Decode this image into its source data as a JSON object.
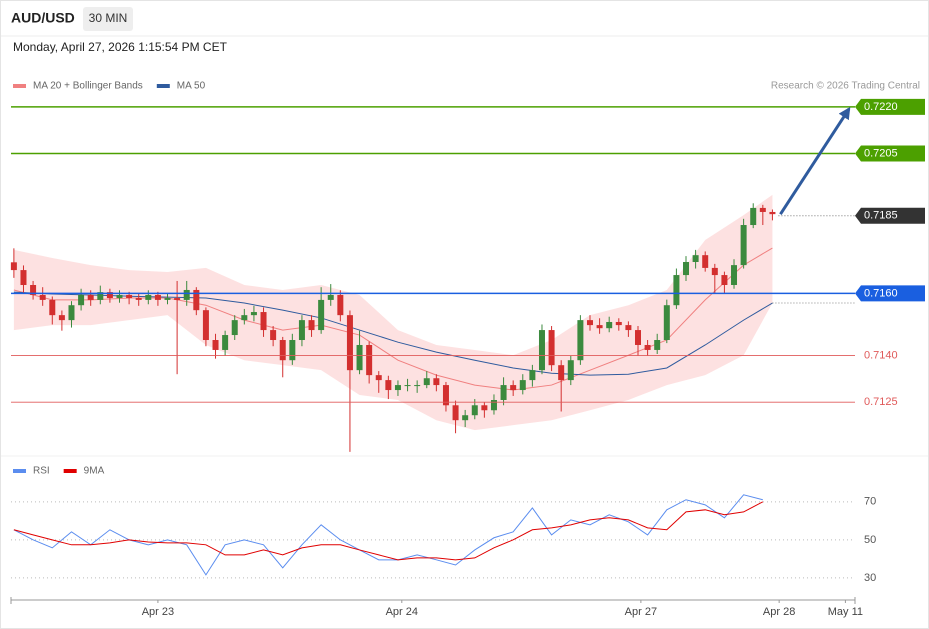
{
  "header": {
    "symbol": "AUD/USD",
    "interval": "30 MIN",
    "timestamp": "Monday, April 27, 2026 1:15:54 PM CET",
    "credit": "Research © 2026 Trading Central"
  },
  "chart_data": [
    {
      "type": "candlestick",
      "up_color": "#3b8a3e",
      "down_color": "#d32f2f",
      "xlim": [
        -0.3,
        87.6
      ],
      "ylim": [
        0.7108,
        0.72425
      ],
      "candles": [
        [
          0.717,
          0.71745,
          0.7165,
          0.71675
        ],
        [
          0.71675,
          0.7169,
          0.716,
          0.71627
        ],
        [
          0.71627,
          0.7164,
          0.7158,
          0.71595
        ],
        [
          0.71595,
          0.7162,
          0.7156,
          0.71579
        ],
        [
          0.71579,
          0.7159,
          0.715,
          0.7153
        ],
        [
          0.7153,
          0.71545,
          0.7148,
          0.71514
        ],
        [
          0.71514,
          0.71575,
          0.7149,
          0.71562
        ],
        [
          0.71562,
          0.71615,
          0.71545,
          0.71595
        ],
        [
          0.71595,
          0.7161,
          0.7156,
          0.71579
        ],
        [
          0.71579,
          0.71625,
          0.71565,
          0.71604
        ],
        [
          0.71604,
          0.71615,
          0.7157,
          0.71585
        ],
        [
          0.71585,
          0.7161,
          0.7157,
          0.71595
        ],
        [
          0.71595,
          0.71605,
          0.71565,
          0.71585
        ],
        [
          0.71585,
          0.716,
          0.7156,
          0.71579
        ],
        [
          0.71579,
          0.7161,
          0.71565,
          0.71595
        ],
        [
          0.71595,
          0.71605,
          0.7156,
          0.71579
        ],
        [
          0.71579,
          0.716,
          0.71565,
          0.71585
        ],
        [
          0.71585,
          0.7164,
          0.7134,
          0.71579
        ],
        [
          0.71579,
          0.7164,
          0.7156,
          0.71611
        ],
        [
          0.71611,
          0.7162,
          0.7153,
          0.71546
        ],
        [
          0.71546,
          0.71555,
          0.7143,
          0.7145
        ],
        [
          0.7145,
          0.7147,
          0.7139,
          0.71418
        ],
        [
          0.71418,
          0.7148,
          0.714,
          0.71466
        ],
        [
          0.71466,
          0.7153,
          0.7145,
          0.71514
        ],
        [
          0.71514,
          0.7155,
          0.715,
          0.7153
        ],
        [
          0.7153,
          0.7156,
          0.7151,
          0.7154
        ],
        [
          0.7154,
          0.71555,
          0.7146,
          0.71482
        ],
        [
          0.71482,
          0.71495,
          0.7143,
          0.7145
        ],
        [
          0.7145,
          0.7146,
          0.7133,
          0.71385
        ],
        [
          0.71385,
          0.7147,
          0.7137,
          0.7145
        ],
        [
          0.7145,
          0.7153,
          0.7143,
          0.71514
        ],
        [
          0.71514,
          0.7153,
          0.7146,
          0.71482
        ],
        [
          0.71482,
          0.7162,
          0.7147,
          0.71579
        ],
        [
          0.71579,
          0.7163,
          0.7156,
          0.71595
        ],
        [
          0.71595,
          0.7161,
          0.7151,
          0.7153
        ],
        [
          0.7153,
          0.71545,
          0.7109,
          0.71353
        ],
        [
          0.71353,
          0.7148,
          0.7134,
          0.71434
        ],
        [
          0.71434,
          0.71445,
          0.7131,
          0.71337
        ],
        [
          0.71337,
          0.7135,
          0.7128,
          0.71321
        ],
        [
          0.71321,
          0.71335,
          0.7126,
          0.71289
        ],
        [
          0.71289,
          0.7132,
          0.7127,
          0.71305
        ],
        [
          0.71305,
          0.71325,
          0.71285,
          0.71305
        ],
        [
          0.71305,
          0.7132,
          0.7128,
          0.71305
        ],
        [
          0.71305,
          0.7135,
          0.71295,
          0.71327
        ],
        [
          0.71327,
          0.7134,
          0.71285,
          0.71305
        ],
        [
          0.71305,
          0.71315,
          0.7122,
          0.7124
        ],
        [
          0.7124,
          0.71255,
          0.7115,
          0.71192
        ],
        [
          0.71192,
          0.71225,
          0.7117,
          0.71208
        ],
        [
          0.71208,
          0.7126,
          0.71195,
          0.7124
        ],
        [
          0.7124,
          0.7125,
          0.712,
          0.71224
        ],
        [
          0.71224,
          0.71275,
          0.7121,
          0.71257
        ],
        [
          0.71257,
          0.7133,
          0.7124,
          0.71305
        ],
        [
          0.71305,
          0.7132,
          0.7127,
          0.71289
        ],
        [
          0.71289,
          0.7134,
          0.71275,
          0.71321
        ],
        [
          0.71321,
          0.7137,
          0.713,
          0.71353
        ],
        [
          0.71353,
          0.715,
          0.7134,
          0.71482
        ],
        [
          0.71482,
          0.71495,
          0.7135,
          0.71369
        ],
        [
          0.71369,
          0.71385,
          0.7122,
          0.71321
        ],
        [
          0.71321,
          0.714,
          0.71305,
          0.71385
        ],
        [
          0.71385,
          0.7153,
          0.7137,
          0.71514
        ],
        [
          0.71514,
          0.7153,
          0.7148,
          0.71498
        ],
        [
          0.71498,
          0.7152,
          0.7147,
          0.71488
        ],
        [
          0.71488,
          0.71525,
          0.71475,
          0.71508
        ],
        [
          0.71508,
          0.7152,
          0.7148,
          0.71498
        ],
        [
          0.71498,
          0.7151,
          0.7146,
          0.71482
        ],
        [
          0.71482,
          0.71495,
          0.714,
          0.71434
        ],
        [
          0.71434,
          0.7145,
          0.714,
          0.71418
        ],
        [
          0.71418,
          0.7147,
          0.71405,
          0.7145
        ],
        [
          0.7145,
          0.7158,
          0.7144,
          0.71562
        ],
        [
          0.71562,
          0.7168,
          0.7155,
          0.71659
        ],
        [
          0.71659,
          0.7172,
          0.7164,
          0.71701
        ],
        [
          0.71701,
          0.7174,
          0.7168,
          0.71723
        ],
        [
          0.71723,
          0.71735,
          0.7167,
          0.71682
        ],
        [
          0.71682,
          0.71695,
          0.716,
          0.71659
        ],
        [
          0.71659,
          0.7167,
          0.716,
          0.71627
        ],
        [
          0.71627,
          0.7171,
          0.71615,
          0.71691
        ],
        [
          0.71691,
          0.7184,
          0.7168,
          0.7182
        ],
        [
          0.7182,
          0.7189,
          0.7181,
          0.71875
        ],
        [
          0.71875,
          0.71885,
          0.7182,
          0.71862
        ],
        [
          0.71862,
          0.7187,
          0.71835,
          0.71855
        ]
      ],
      "series": [
        {
          "name": "MA 20 + Bollinger Bands",
          "color": "#f08080",
          "band_color": "#fddcdc",
          "x": [
            0,
            4,
            8,
            12,
            16,
            20,
            24,
            28,
            32,
            36,
            40,
            44,
            48,
            52,
            56,
            60,
            64,
            68,
            72,
            76,
            79
          ],
          "values": [
            0.71611,
            0.71579,
            0.71579,
            0.71585,
            0.71585,
            0.71562,
            0.71514,
            0.71482,
            0.71498,
            0.71466,
            0.71385,
            0.71337,
            0.71305,
            0.71289,
            0.71305,
            0.71353,
            0.71401,
            0.7145,
            0.71579,
            0.71691,
            0.71746
          ],
          "upper": [
            0.7174,
            0.71714,
            0.71691,
            0.71675,
            0.71669,
            0.71682,
            0.71627,
            0.71611,
            0.71627,
            0.71595,
            0.71482,
            0.71434,
            0.71418,
            0.71401,
            0.7145,
            0.7153,
            0.71562,
            0.71611,
            0.71772,
            0.71852,
            0.71917
          ],
          "lower": [
            0.71482,
            0.71498,
            0.71498,
            0.71514,
            0.7153,
            0.71434,
            0.71385,
            0.71369,
            0.71353,
            0.71273,
            0.71257,
            0.71192,
            0.7116,
            0.71176,
            0.71192,
            0.71224,
            0.71257,
            0.71305,
            0.71337,
            0.71401,
            0.71569
          ]
        },
        {
          "name": "MA 50",
          "color": "#2f5b9e",
          "x": [
            0,
            4,
            8,
            12,
            16,
            20,
            24,
            28,
            32,
            36,
            40,
            44,
            48,
            52,
            56,
            60,
            64,
            68,
            72,
            76,
            79
          ],
          "values": [
            0.71604,
            0.71598,
            0.71595,
            0.71591,
            0.71588,
            0.71585,
            0.71569,
            0.71546,
            0.71521,
            0.71482,
            0.71443,
            0.71411,
            0.71385,
            0.7136,
            0.71343,
            0.71337,
            0.7134,
            0.7136,
            0.71434,
            0.71514,
            0.71569
          ]
        }
      ],
      "levels": [
        {
          "value": 0.722,
          "label": "0.7220",
          "color": "#4ca000",
          "line": "solid",
          "box": true
        },
        {
          "value": 0.7205,
          "label": "0.7205",
          "color": "#4ca000",
          "line": "solid",
          "box": true
        },
        {
          "value": 0.7185,
          "label": "0.7185",
          "color": "#333333",
          "line": "dotted",
          "box": true
        },
        {
          "value": 0.716,
          "label": "0.7160",
          "color": "#1a5fe0",
          "line": "solid",
          "box": true
        },
        {
          "value": 0.714,
          "label": "0.7140",
          "color": "#e05a5a",
          "line": "solid",
          "box": false
        },
        {
          "value": 0.7125,
          "label": "0.7125",
          "color": "#e05a5a",
          "line": "solid",
          "box": false
        }
      ]
    },
    {
      "type": "line",
      "xlim": [
        -0.3,
        87.6
      ],
      "ylim": [
        21,
        92
      ],
      "yticks": [
        30,
        50,
        70
      ],
      "xticks": [
        {
          "value": 15,
          "label": "Apr 23"
        },
        {
          "value": 40.4,
          "label": "Apr 24"
        },
        {
          "value": 65.3,
          "label": "Apr 27"
        },
        {
          "value": 79.7,
          "label": "Apr 28"
        },
        {
          "value": 86.6,
          "label": "May 11"
        }
      ],
      "x": [
        0,
        2,
        4,
        6,
        8,
        10,
        12,
        14,
        16,
        18,
        20,
        22,
        24,
        26,
        28,
        30,
        32,
        34,
        36,
        38,
        40,
        42,
        44,
        46,
        48,
        50,
        52,
        54,
        56,
        58,
        60,
        62,
        64,
        66,
        68,
        70,
        72,
        74,
        76,
        78
      ],
      "series": [
        {
          "name": "RSI",
          "color": "#5b8def",
          "values": [
            55.3,
            50,
            45.8,
            54.2,
            47.4,
            55.3,
            50,
            47.4,
            50,
            47.4,
            31.6,
            47.4,
            50,
            47.4,
            35.3,
            47.4,
            57.9,
            50,
            44.7,
            39.5,
            39.5,
            42.1,
            39.5,
            36.8,
            44.7,
            51.1,
            54.2,
            66.8,
            52.6,
            60.5,
            57.9,
            63.2,
            59.5,
            52.6,
            65.8,
            71.1,
            68.4,
            61.6,
            73.7,
            71.1
          ]
        },
        {
          "name": "9MA",
          "color": "#e00000",
          "values": [
            55.3,
            52.6,
            50,
            47.4,
            47.4,
            48.4,
            50,
            48.9,
            48.4,
            48.4,
            47.4,
            42.1,
            42.1,
            44.7,
            42.1,
            45.8,
            47.4,
            47.4,
            44.7,
            42.1,
            39.5,
            40.5,
            40.5,
            39.5,
            40.5,
            45.8,
            50,
            55.3,
            56.3,
            57.9,
            60.5,
            61.6,
            60.5,
            56.3,
            55.3,
            64.7,
            65.8,
            63.2,
            64.7,
            70
          ]
        }
      ]
    }
  ]
}
